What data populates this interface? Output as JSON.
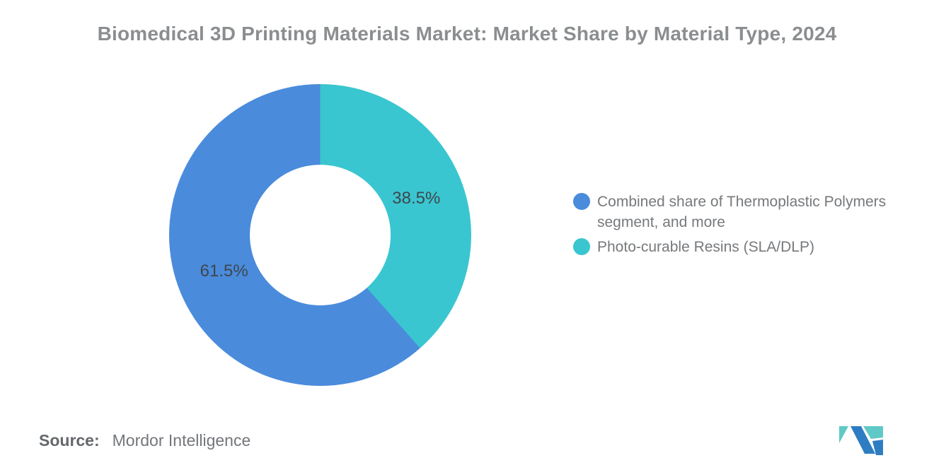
{
  "chart_data": {
    "type": "donut",
    "title": "Biomedical 3D Printing Materials Market: Market Share by Material Type, 2024",
    "units": "%",
    "series": [
      {
        "name": "Combined share of Thermoplastic Polymers segment, and more",
        "value": 61.5,
        "label": "61.5%",
        "color": "#4a8bdc"
      },
      {
        "name": "Photo-curable Resins (SLA/DLP)",
        "value": 38.5,
        "label": "38.5%",
        "color": "#3ac6d0"
      }
    ],
    "start_angle_deg": 0,
    "direction": "clockwise",
    "draw_order": [
      1,
      0
    ],
    "hole_ratio": 0.468,
    "label_radius_ratio": 0.68,
    "label_color": "#3d474d",
    "legend_position": "right",
    "grid": false
  },
  "source": {
    "label": "Source:",
    "value": "Mordor Intelligence"
  },
  "logo": {
    "name": "mordor-intelligence-logo",
    "blue": "#2e7dc2",
    "teal": "#5fc9c6"
  }
}
